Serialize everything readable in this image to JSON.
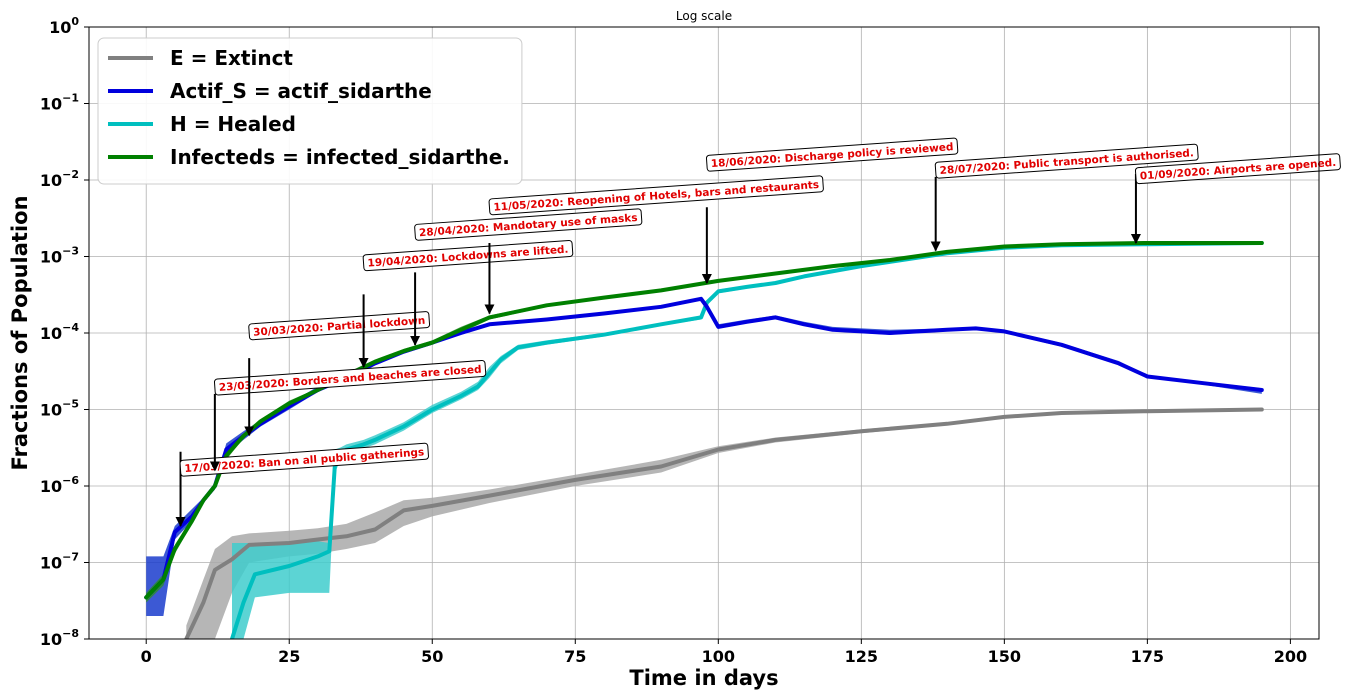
{
  "chart_data": {
    "type": "line",
    "title": "Log scale",
    "xlabel": "Time in days",
    "ylabel": "Fractions of Population",
    "xlim": [
      -10,
      205
    ],
    "ylim": [
      1e-08,
      1
    ],
    "yscale": "log",
    "grid": true,
    "legend_position": "top-left",
    "x_ticks": [
      0,
      25,
      50,
      75,
      100,
      125,
      150,
      175,
      200
    ],
    "x_tick_labels": [
      "0",
      "25",
      "50",
      "75",
      "100",
      "125",
      "150",
      "175",
      "200"
    ],
    "y_ticks": [
      1e-08,
      1e-07,
      1e-06,
      1e-05,
      0.0001,
      0.001,
      0.01,
      0.1,
      1
    ],
    "y_tick_labels": [
      {
        "base": "10",
        "exp": "−8"
      },
      {
        "base": "10",
        "exp": "−7"
      },
      {
        "base": "10",
        "exp": "−6"
      },
      {
        "base": "10",
        "exp": "−5"
      },
      {
        "base": "10",
        "exp": "−4"
      },
      {
        "base": "10",
        "exp": "−3"
      },
      {
        "base": "10",
        "exp": "−2"
      },
      {
        "base": "10",
        "exp": "−1"
      },
      {
        "base": "10",
        "exp": "0"
      }
    ],
    "series": [
      {
        "name": "E = Extinct",
        "color": "#808080",
        "band_color": "#a9a9a9",
        "x": [
          7,
          10,
          12,
          15,
          18,
          25,
          30,
          35,
          40,
          45,
          50,
          60,
          75,
          90,
          100,
          110,
          125,
          140,
          150,
          160,
          175,
          195
        ],
        "y": [
          1e-08,
          3e-08,
          8e-08,
          1.1e-07,
          1.7e-07,
          1.8e-07,
          2e-07,
          2.2e-07,
          2.7e-07,
          4.8e-07,
          5.5e-07,
          7.5e-07,
          1.2e-06,
          1.8e-06,
          3e-06,
          4e-06,
          5.2e-06,
          6.5e-06,
          8e-06,
          9e-06,
          9.5e-06,
          1e-05
        ],
        "band_upper": [
          1.5e-08,
          6e-08,
          1.5e-07,
          2.2e-07,
          2.4e-07,
          2.6e-07,
          2.8e-07,
          3.2e-07,
          4.5e-07,
          6.5e-07,
          7e-07,
          9e-07,
          1.4e-06,
          2.2e-06,
          3.3e-06,
          4.3e-06,
          5.5e-06,
          6.8e-06,
          8.3e-06,
          9.2e-06,
          9.7e-06,
          1.02e-05
        ],
        "band_lower": [
          1e-08,
          1e-08,
          1e-08,
          4e-08,
          1e-07,
          1.2e-07,
          1.3e-07,
          1.5e-07,
          1.8e-07,
          3e-07,
          4e-07,
          6e-07,
          1e-06,
          1.5e-06,
          2.7e-06,
          3.7e-06,
          4.9e-06,
          6.2e-06,
          7.7e-06,
          8.8e-06,
          9.3e-06,
          9.8e-06
        ]
      },
      {
        "name": "Actif_S = actif_sidarthe",
        "color": "#0000dd",
        "band_color": "#1a3ccc",
        "x": [
          0,
          3,
          5,
          8,
          10,
          12,
          14,
          17,
          20,
          25,
          30,
          35,
          40,
          45,
          50,
          55,
          60,
          70,
          80,
          90,
          97,
          98,
          100,
          105,
          110,
          115,
          120,
          130,
          140,
          145,
          150,
          160,
          170,
          175,
          185,
          195
        ],
        "y": [
          3.5e-08,
          6e-08,
          2.5e-07,
          4e-07,
          6.5e-07,
          1e-06,
          3e-06,
          4.5e-06,
          6.5e-06,
          1.1e-05,
          1.8e-05,
          2.6e-05,
          4e-05,
          5.7e-05,
          7.5e-05,
          0.0001,
          0.00013,
          0.00015,
          0.00018,
          0.00022,
          0.00028,
          0.00022,
          0.00012,
          0.00014,
          0.00016,
          0.00013,
          0.00011,
          0.0001,
          0.00011,
          0.000115,
          0.000105,
          7e-05,
          4e-05,
          2.7e-05,
          2.2e-05,
          1.8e-05
        ],
        "band_upper": [
          1.2e-07,
          1.2e-07,
          3e-07,
          5e-07,
          7e-07,
          1.1e-06,
          3.6e-06,
          5.2e-06,
          7.2e-06,
          1.2e-05,
          2e-05,
          2.8e-05,
          4.3e-05,
          6e-05,
          7.9e-05,
          0.000105,
          0.000135,
          0.000155,
          0.000185,
          0.00023,
          0.00029,
          0.00023,
          0.00013,
          0.00015,
          0.00017,
          0.00014,
          0.00012,
          0.00011,
          0.000115,
          0.00012,
          0.00011,
          7.4e-05,
          4.3e-05,
          2.8e-05,
          2.3e-05,
          1.9e-05
        ],
        "band_lower": [
          2e-08,
          2e-08,
          2e-07,
          3.5e-07,
          6e-07,
          9e-07,
          2.6e-06,
          4e-06,
          6e-06,
          1e-05,
          1.7e-05,
          2.4e-05,
          3.8e-05,
          5.4e-05,
          7.2e-05,
          9.5e-05,
          0.000125,
          0.000145,
          0.000175,
          0.00021,
          0.00027,
          0.00021,
          0.000115,
          0.000135,
          0.000155,
          0.000125,
          0.000105,
          9.5e-05,
          0.000105,
          0.00011,
          0.0001,
          6.6e-05,
          3.8e-05,
          2.6e-05,
          2.1e-05,
          1.6e-05
        ]
      },
      {
        "name": "H = Healed",
        "color": "#00bfbf",
        "band_color": "#40cccc",
        "x": [
          15,
          17,
          19,
          25,
          30,
          32,
          33,
          34,
          35,
          38,
          40,
          45,
          50,
          55,
          58,
          60,
          62,
          65,
          70,
          80,
          90,
          97,
          98,
          100,
          105,
          110,
          115,
          125,
          140,
          150,
          160,
          175,
          195
        ],
        "y": [
          1e-08,
          3e-08,
          7e-08,
          9e-08,
          1.2e-07,
          1.4e-07,
          2e-06,
          2.5e-06,
          3e-06,
          3.5e-06,
          4e-06,
          6e-06,
          1e-05,
          1.5e-05,
          2e-05,
          3e-05,
          4.5e-05,
          6.5e-05,
          7.5e-05,
          9.5e-05,
          0.00013,
          0.00016,
          0.00025,
          0.00035,
          0.0004,
          0.00045,
          0.00055,
          0.00075,
          0.0011,
          0.0013,
          0.0014,
          0.00145,
          0.0015
        ],
        "band_upper": [
          1.8e-07,
          1.8e-07,
          1.8e-07,
          1.9e-07,
          1.9e-07,
          1.8e-07,
          3e-06,
          3.2e-06,
          3.5e-06,
          4e-06,
          4.6e-06,
          6.8e-06,
          1.15e-05,
          1.7e-05,
          2.3e-05,
          3.6e-05,
          5e-05,
          7e-05,
          8e-05,
          0.0001,
          0.000135,
          0.000165,
          0.00027,
          0.00037,
          0.00042,
          0.00047,
          0.00057,
          0.00077,
          0.00112,
          0.00132,
          0.00142,
          0.00147,
          0.00152
        ],
        "band_lower": [
          1e-08,
          1e-08,
          3.5e-08,
          4e-08,
          4e-08,
          4e-08,
          1.5e-06,
          2.2e-06,
          2.6e-06,
          3.1e-06,
          3.5e-06,
          5.3e-06,
          9e-06,
          1.35e-05,
          1.8e-05,
          2.6e-05,
          4e-05,
          6e-05,
          7e-05,
          9e-05,
          0.000125,
          0.00015,
          0.00023,
          0.00033,
          0.00038,
          0.00043,
          0.00053,
          0.00073,
          0.00108,
          0.00128,
          0.00138,
          0.00143,
          0.00148
        ]
      },
      {
        "name": "Infecteds = infected_sidarthe.",
        "color": "#008000",
        "band_color": "#2e8b2e",
        "x": [
          0,
          3,
          5,
          8,
          10,
          12,
          14,
          17,
          20,
          25,
          30,
          35,
          40,
          45,
          50,
          55,
          60,
          70,
          80,
          90,
          100,
          110,
          120,
          130,
          140,
          150,
          160,
          175,
          195
        ],
        "y": [
          3.5e-08,
          6e-08,
          1.5e-07,
          3.5e-07,
          6.5e-07,
          1e-06,
          2.5e-06,
          4.5e-06,
          7e-06,
          1.2e-05,
          1.8e-05,
          2.8e-05,
          4.2e-05,
          5.8e-05,
          7.5e-05,
          0.00011,
          0.00016,
          0.00023,
          0.00029,
          0.00036,
          0.00048,
          0.0006,
          0.00075,
          0.0009,
          0.00115,
          0.00135,
          0.00145,
          0.0015,
          0.0015
        ],
        "band_upper": [
          4e-08,
          7e-08,
          1.7e-07,
          3.8e-07,
          7e-07,
          1.1e-06,
          2.8e-06,
          4.8e-06,
          7.5e-06,
          1.3e-05,
          1.9e-05,
          3e-05,
          4.5e-05,
          6.2e-05,
          8e-05,
          0.00012,
          0.00017,
          0.00024,
          0.0003,
          0.00037,
          0.00049,
          0.00062,
          0.00077,
          0.00092,
          0.00117,
          0.00137,
          0.00147,
          0.00152,
          0.00152
        ],
        "band_lower": [
          3e-08,
          5e-08,
          1.3e-07,
          3.2e-07,
          6e-07,
          9e-07,
          2.2e-06,
          4.2e-06,
          6.5e-06,
          1.1e-05,
          1.7e-05,
          2.6e-05,
          3.9e-05,
          5.4e-05,
          7e-05,
          0.0001,
          0.00015,
          0.00022,
          0.00028,
          0.00035,
          0.00047,
          0.00058,
          0.00073,
          0.00088,
          0.00113,
          0.00133,
          0.00143,
          0.00148,
          0.00148
        ]
      }
    ],
    "annotations": [
      {
        "text": "17/03/2020: Ban on all public gatherings",
        "x": 6,
        "label_y": 1.65e-06,
        "arrow_from": 2.8e-06,
        "arrow_to": 3e-07
      },
      {
        "text": "23/03/2020: Borders and beaches are closed",
        "x": 12,
        "label_y": 1.9e-05,
        "arrow_from": 1.6e-05,
        "arrow_to": 1.6e-06
      },
      {
        "text": "30/03/2020: Partial lockdown",
        "x": 18,
        "label_y": 0.0001,
        "arrow_from": 4.7e-05,
        "arrow_to": 4.6e-06
      },
      {
        "text": "19/04/2020: Lockdowns are lifted.",
        "x": 38,
        "label_y": 0.0008,
        "arrow_from": 0.00032,
        "arrow_to": 3.6e-05
      },
      {
        "text": "28/04/2020: Mandotary use of masks",
        "x": 47,
        "label_y": 0.002,
        "arrow_from": 0.00062,
        "arrow_to": 7e-05
      },
      {
        "text": "11/05/2020: Reopening of Hotels, bars and restaurants",
        "x": 60,
        "label_y": 0.0043,
        "arrow_from": 0.0015,
        "arrow_to": 0.00018
      },
      {
        "text": "18/06/2020: Discharge policy is reviewed",
        "x": 98,
        "label_y": 0.016,
        "arrow_from": 0.0044,
        "arrow_to": 0.00045
      },
      {
        "text": "28/07/2020: Public transport is authorised.",
        "x": 138,
        "label_y": 0.013,
        "arrow_from": 0.011,
        "arrow_to": 0.0012
      },
      {
        "text": "01/09/2020: Airports are opened.",
        "x": 173,
        "label_y": 0.011,
        "arrow_from": 0.012,
        "arrow_to": 0.0015
      }
    ]
  }
}
